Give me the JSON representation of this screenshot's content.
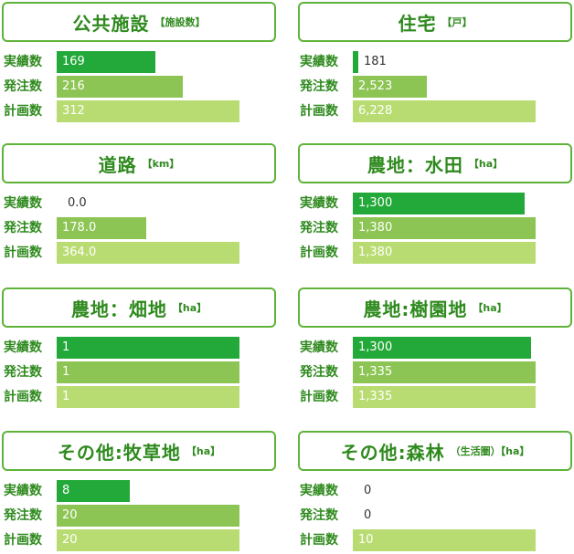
{
  "labels": [
    "実績数",
    "発注数",
    "計画数"
  ],
  "colors": {
    "border": "#5fb33a",
    "title": "#2f8a1e",
    "actual": "#23a83a",
    "ordered": "#8cc553",
    "planned": "#b9dc72"
  },
  "chart_data": [
    {
      "type": "bar",
      "title": "公共施設",
      "unit": "【施設数】",
      "categories": [
        "実績数",
        "発注数",
        "計画数"
      ],
      "values": [
        169,
        216,
        312
      ],
      "display": [
        "169",
        "216",
        "312"
      ],
      "max": 312
    },
    {
      "type": "bar",
      "title": "住宅",
      "unit": "【戸】",
      "categories": [
        "実績数",
        "発注数",
        "計画数"
      ],
      "values": [
        181,
        2523,
        6228
      ],
      "display": [
        "181",
        "2,523",
        "6,228"
      ],
      "max": 6228
    },
    {
      "type": "bar",
      "title": "道路",
      "unit": "【km】",
      "categories": [
        "実績数",
        "発注数",
        "計画数"
      ],
      "values": [
        0.0,
        178.0,
        364.0
      ],
      "display": [
        "0.0",
        "178.0",
        "364.0"
      ],
      "max": 364.0
    },
    {
      "type": "bar",
      "title": "農地：水田",
      "unit": "【ha】",
      "categories": [
        "実績数",
        "発注数",
        "計画数"
      ],
      "values": [
        1300,
        1380,
        1380
      ],
      "display": [
        "1,300",
        "1,380",
        "1,380"
      ],
      "max": 1380
    },
    {
      "type": "bar",
      "title": "農地：畑地",
      "unit": "【ha】",
      "categories": [
        "実績数",
        "発注数",
        "計画数"
      ],
      "values": [
        1,
        1,
        1
      ],
      "display": [
        "1",
        "1",
        "1"
      ],
      "max": 1
    },
    {
      "type": "bar",
      "title": "農地:樹園地",
      "unit": "【ha】",
      "categories": [
        "実績数",
        "発注数",
        "計画数"
      ],
      "values": [
        1300,
        1335,
        1335
      ],
      "display": [
        "1,300",
        "1,335",
        "1,335"
      ],
      "max": 1335
    },
    {
      "type": "bar",
      "title": "その他:牧草地",
      "unit": "【ha】",
      "categories": [
        "実績数",
        "発注数",
        "計画数"
      ],
      "values": [
        8,
        20,
        20
      ],
      "display": [
        "8",
        "20",
        "20"
      ],
      "max": 20
    },
    {
      "type": "bar",
      "title": "その他:森林",
      "unit": "（生活圏）【ha】",
      "categories": [
        "実績数",
        "発注数",
        "計画数"
      ],
      "values": [
        0,
        0,
        10
      ],
      "display": [
        "0",
        "0",
        "10"
      ],
      "max": 10
    }
  ]
}
